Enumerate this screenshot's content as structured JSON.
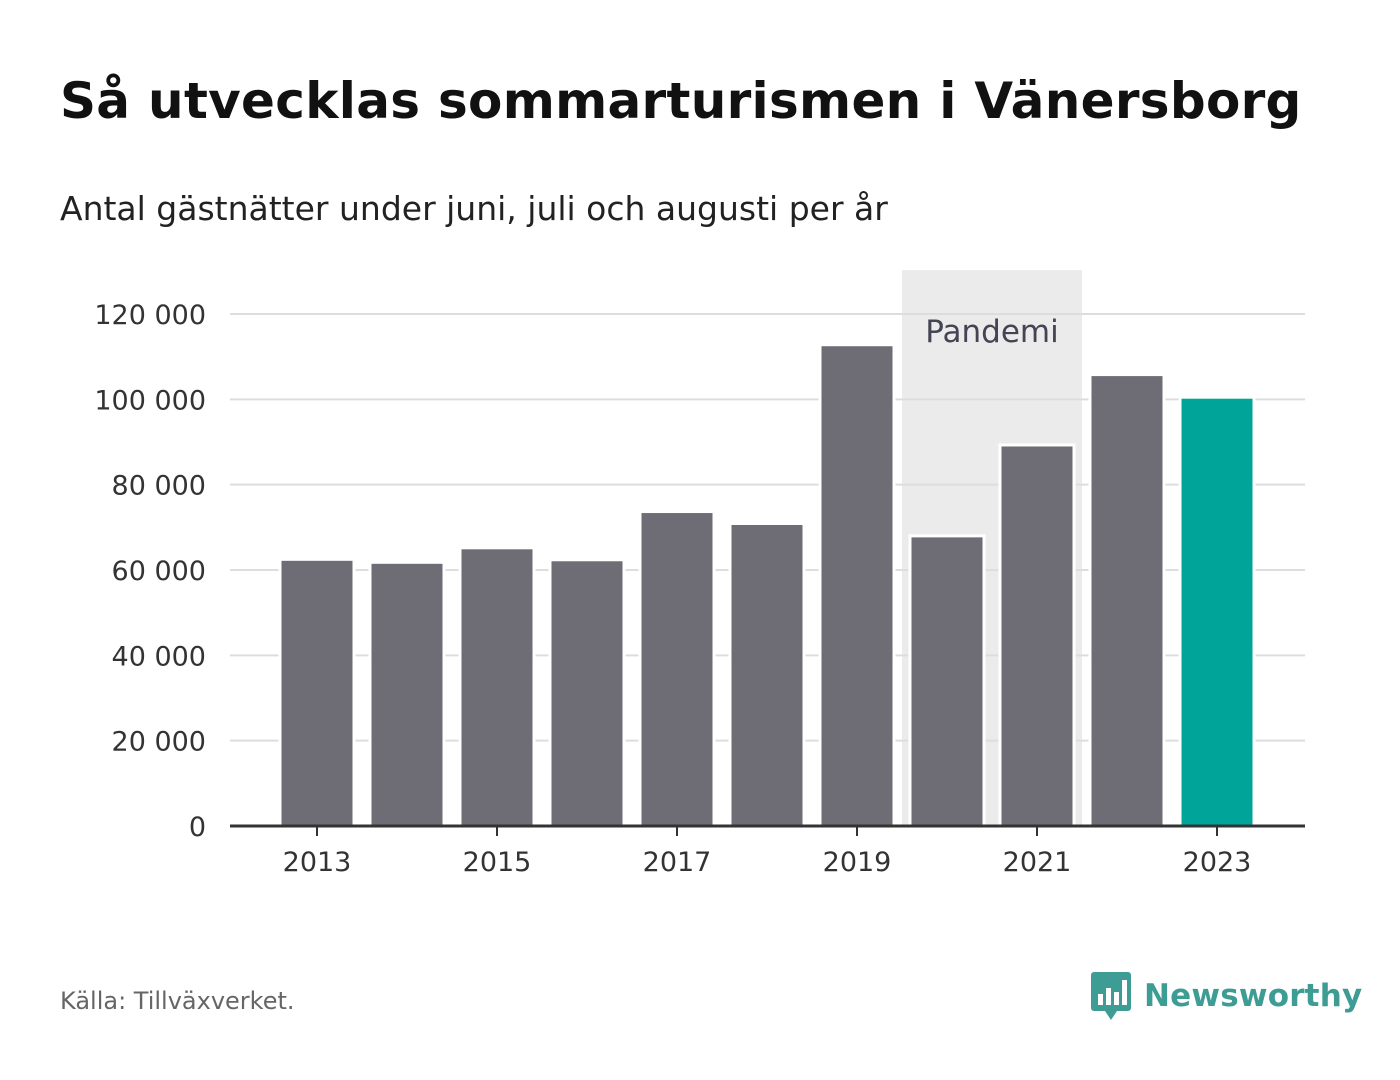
{
  "title": "Så utvecklas sommarturismen i Vänersborg",
  "subtitle": "Antal gästnätter under juni, juli och augusti per år",
  "source": "Källa: Tillväxverket.",
  "brand": {
    "name": "Newsworthy",
    "icon": "newsworthy-logo-icon",
    "color": "#3d9c93"
  },
  "colors": {
    "bar": "#6e6d75",
    "highlight": "#00a499",
    "pandemic_band": "#ebebeb",
    "grid": "#dddddd",
    "axis": "#333333"
  },
  "chart_data": {
    "type": "bar",
    "categories": [
      "2013",
      "2014",
      "2015",
      "2016",
      "2017",
      "2018",
      "2019",
      "2020",
      "2021",
      "2022",
      "2023"
    ],
    "values": [
      62500,
      61800,
      65200,
      62400,
      73700,
      70900,
      112800,
      68000,
      89300,
      105800,
      100500
    ],
    "highlight_category": "2023",
    "x_tick_labels": [
      "2013",
      "2015",
      "2017",
      "2019",
      "2021",
      "2023"
    ],
    "y_ticks": [
      {
        "value": 0,
        "label": "0"
      },
      {
        "value": 20000,
        "label": "20 000"
      },
      {
        "value": 40000,
        "label": "40 000"
      },
      {
        "value": 60000,
        "label": "60 000"
      },
      {
        "value": 80000,
        "label": "80 000"
      },
      {
        "value": 100000,
        "label": "100 000"
      },
      {
        "value": 120000,
        "label": "120 000"
      }
    ],
    "ylim": [
      0,
      130000
    ],
    "grid": true,
    "annotation": {
      "label": "Pandemi",
      "from": "2020",
      "to": "2021"
    }
  }
}
